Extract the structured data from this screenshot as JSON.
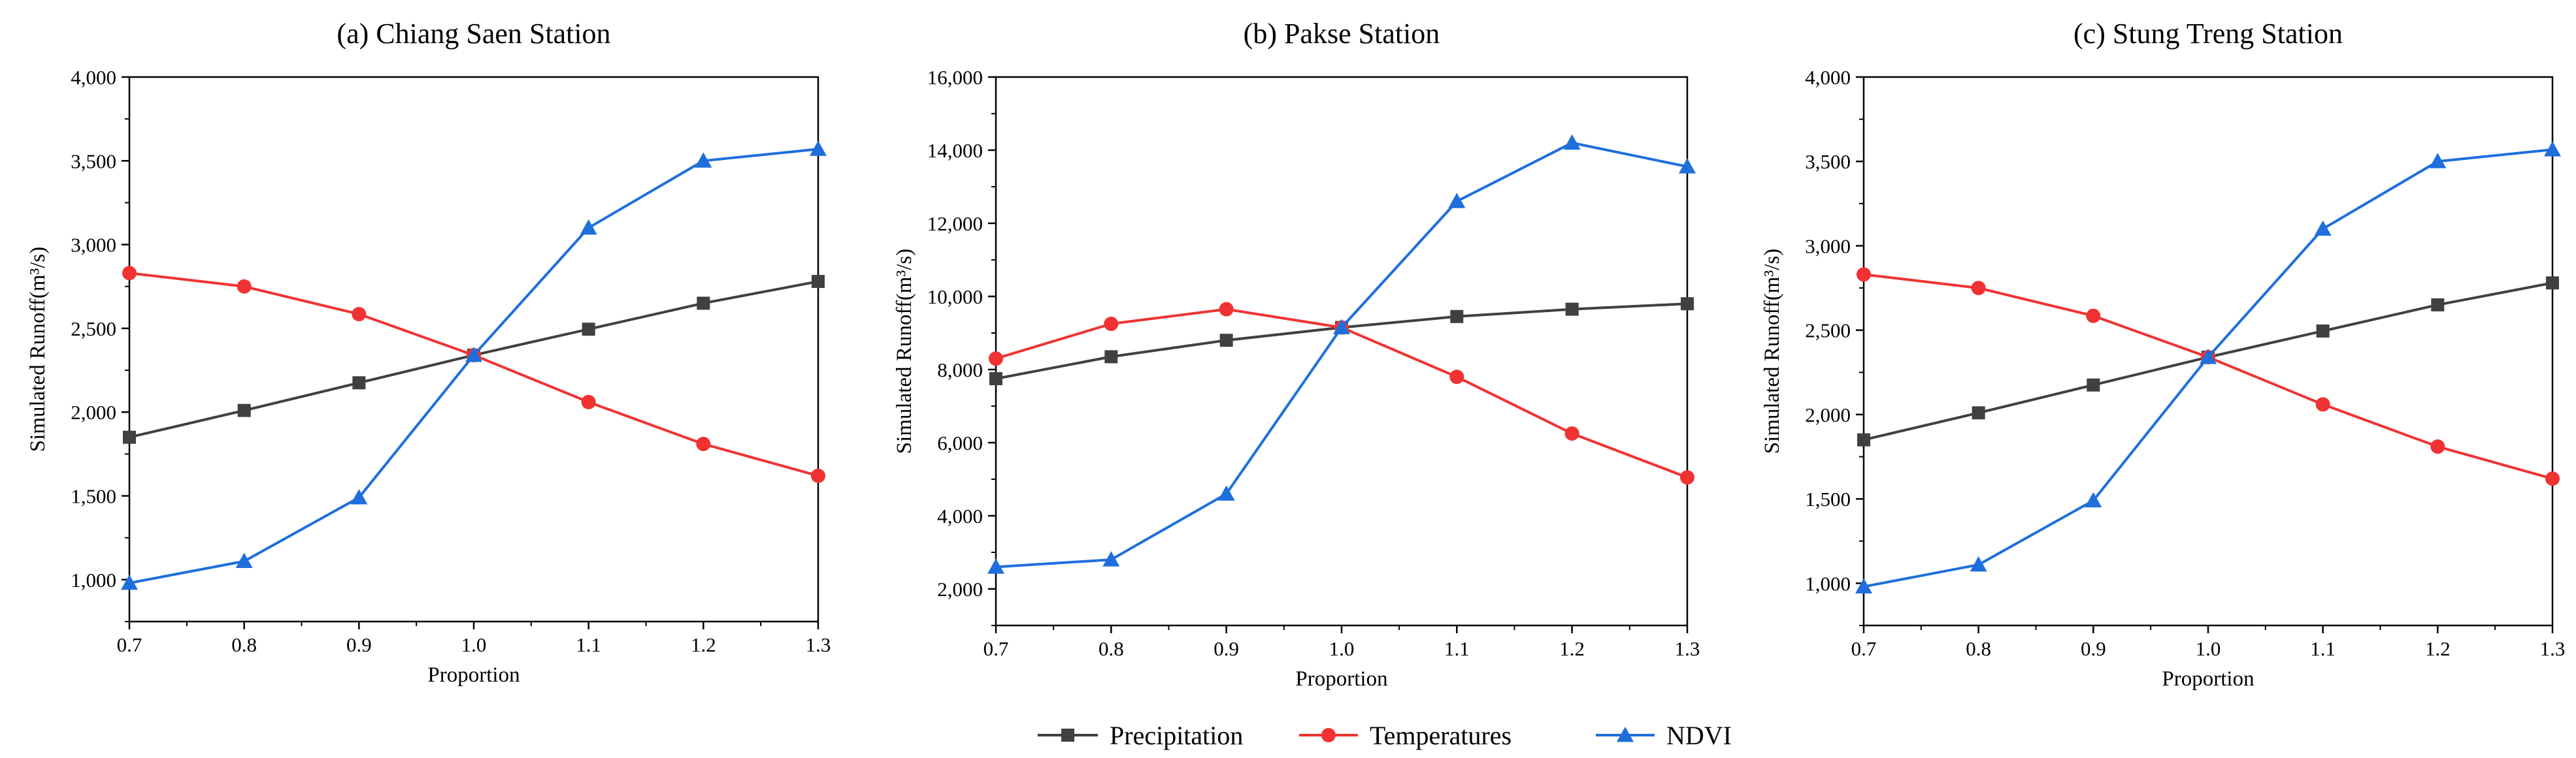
{
  "legend": [
    {
      "name": "Precipitation",
      "color": "#404040",
      "marker": "square"
    },
    {
      "name": "Temperatures",
      "color": "#f03232",
      "marker": "circle"
    },
    {
      "name": "NDVI",
      "color": "#1e6fdc",
      "marker": "triangle"
    }
  ],
  "chart_data": [
    {
      "type": "line",
      "title": "(a) Chiang Saen Station",
      "xlabel": "Proportion",
      "ylabel": "Simulated  Runoff(m³/s)",
      "xlim": [
        0.7,
        1.3
      ],
      "ylim": [
        750,
        4000
      ],
      "x": [
        0.7,
        0.8,
        0.9,
        1.0,
        1.1,
        1.2,
        1.3
      ],
      "xticks": [
        "0.7",
        "0.8",
        "0.9",
        "1.0",
        "1.1",
        "1.2",
        "1.3"
      ],
      "yticks": [
        "1,000",
        "1,500",
        "2,000",
        "2,500",
        "3,000",
        "3,500",
        "4,000"
      ],
      "ytick_values": [
        1000,
        1500,
        2000,
        2500,
        3000,
        3500,
        4000
      ],
      "series": [
        {
          "name": "Precipitation",
          "values": [
            1850,
            2010,
            2175,
            2340,
            2495,
            2650,
            2780
          ]
        },
        {
          "name": "Temperatures",
          "values": [
            2830,
            2750,
            2585,
            2340,
            2060,
            1810,
            1620
          ]
        },
        {
          "name": "NDVI",
          "values": [
            980,
            1110,
            1490,
            2340,
            3100,
            3500,
            3570
          ]
        }
      ]
    },
    {
      "type": "line",
      "title": "(b) Pakse Station",
      "xlabel": "Proportion",
      "ylabel": "Simulated  Runoff(m³/s)",
      "xlim": [
        0.7,
        1.3
      ],
      "ylim": [
        1000,
        16000
      ],
      "x": [
        0.7,
        0.8,
        0.9,
        1.0,
        1.1,
        1.2,
        1.3
      ],
      "xticks": [
        "0.7",
        "0.8",
        "0.9",
        "1.0",
        "1.1",
        "1.2",
        "1.3"
      ],
      "yticks": [
        "2,000",
        "4,000",
        "6,000",
        "8,000",
        "10,000",
        "12,000",
        "14,000",
        "16,000"
      ],
      "ytick_values": [
        2000,
        4000,
        6000,
        8000,
        10000,
        12000,
        14000,
        16000
      ],
      "series": [
        {
          "name": "Precipitation",
          "values": [
            7750,
            8350,
            8800,
            9150,
            9450,
            9650,
            9800
          ]
        },
        {
          "name": "Temperatures",
          "values": [
            8300,
            9250,
            9650,
            9150,
            7800,
            6250,
            5050
          ]
        },
        {
          "name": "NDVI",
          "values": [
            2600,
            2800,
            4600,
            9150,
            12600,
            14200,
            13550
          ]
        }
      ]
    },
    {
      "type": "line",
      "title": "(c) Stung Treng Station",
      "xlabel": "Proportion",
      "ylabel": "Simulated  Runoff(m³/s)",
      "xlim": [
        0.7,
        1.3
      ],
      "ylim": [
        750,
        4000
      ],
      "x": [
        0.7,
        0.8,
        0.9,
        1.0,
        1.1,
        1.2,
        1.3
      ],
      "xticks": [
        "0.7",
        "0.8",
        "0.9",
        "1.0",
        "1.1",
        "1.2",
        "1.3"
      ],
      "yticks": [
        "1,000",
        "1,500",
        "2,000",
        "2,500",
        "3,000",
        "3,500",
        "4,000"
      ],
      "ytick_values": [
        1000,
        1500,
        2000,
        2500,
        3000,
        3500,
        4000
      ],
      "series": [
        {
          "name": "Precipitation",
          "values": [
            1850,
            2010,
            2175,
            2340,
            2495,
            2650,
            2780
          ]
        },
        {
          "name": "Temperatures",
          "values": [
            2830,
            2750,
            2585,
            2340,
            2060,
            1810,
            1620
          ]
        },
        {
          "name": "NDVI",
          "values": [
            980,
            1110,
            1490,
            2340,
            3100,
            3500,
            3570
          ]
        }
      ]
    }
  ]
}
